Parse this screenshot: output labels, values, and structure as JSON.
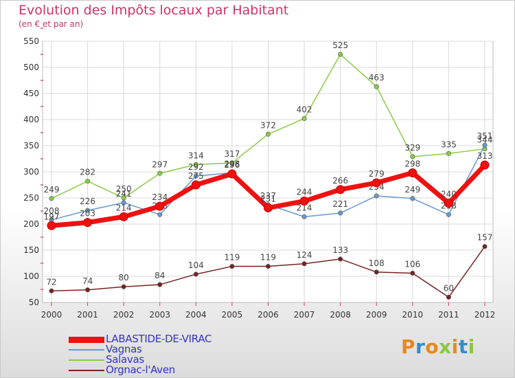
{
  "header": {
    "title": "Evolution des Impôts locaux par Habitant",
    "subtitle": "(en € et par an)"
  },
  "logo": {
    "text": "Proxiti",
    "colors": [
      "#e8891c",
      "#2f8ccf",
      "#e8891c",
      "#8dc63f",
      "#e8891c",
      "#2f8ccf",
      "#8dc63f"
    ]
  },
  "chart_data": {
    "type": "line",
    "title": "Evolution des Impôts locaux par Habitant",
    "subtitle": "(en € et par an)",
    "xlabel": "",
    "ylabel": "",
    "x": [
      "2000",
      "2001",
      "2002",
      "2003",
      "2004",
      "2005",
      "2006",
      "2007",
      "2008",
      "2009",
      "2010",
      "2011",
      "2012"
    ],
    "ylim": [
      50,
      550
    ],
    "yticks": [
      50,
      100,
      150,
      200,
      250,
      300,
      350,
      400,
      450,
      500,
      550
    ],
    "grid": true,
    "legend_position": "bottom-left",
    "series": [
      {
        "name": "Orgnac-l'Aven",
        "color": "#772222",
        "values": [
          72,
          74,
          80,
          84,
          104,
          119,
          119,
          124,
          133,
          108,
          106,
          60,
          157
        ],
        "labels": [
          "72",
          "74",
          "80",
          "84",
          "104",
          "119",
          "119",
          "124",
          "133",
          "108",
          "106",
          "60",
          "157"
        ]
      },
      {
        "name": "Salavas",
        "color": "#88cc44",
        "values": [
          249,
          282,
          250,
          297,
          314,
          317,
          372,
          402,
          525,
          463,
          329,
          335,
          344
        ],
        "labels": [
          "249",
          "282",
          "250",
          "297",
          "314",
          "317",
          "372",
          "402",
          "525",
          "463",
          "329",
          "335",
          "344"
        ]
      },
      {
        "name": "Vagnas",
        "color": "#6699cc",
        "values": [
          208,
          226,
          241,
          218,
          292,
          298,
          237,
          214,
          221,
          254,
          249,
          218,
          351
        ],
        "labels": [
          "208",
          "226",
          "241",
          "218",
          "292",
          "298",
          "237",
          "214",
          "221",
          "254",
          "249",
          "218",
          "351"
        ]
      },
      {
        "name": "LABASTIDE-DE-VIRAC",
        "color": "#ee1111",
        "values": [
          197,
          203,
          214,
          234,
          275,
          296,
          231,
          244,
          266,
          279,
          298,
          240,
          313
        ],
        "labels": [
          "197",
          "203",
          "214",
          "234",
          "275",
          "296",
          "231",
          "244",
          "266",
          "279",
          "298",
          "240",
          "313"
        ]
      }
    ]
  }
}
